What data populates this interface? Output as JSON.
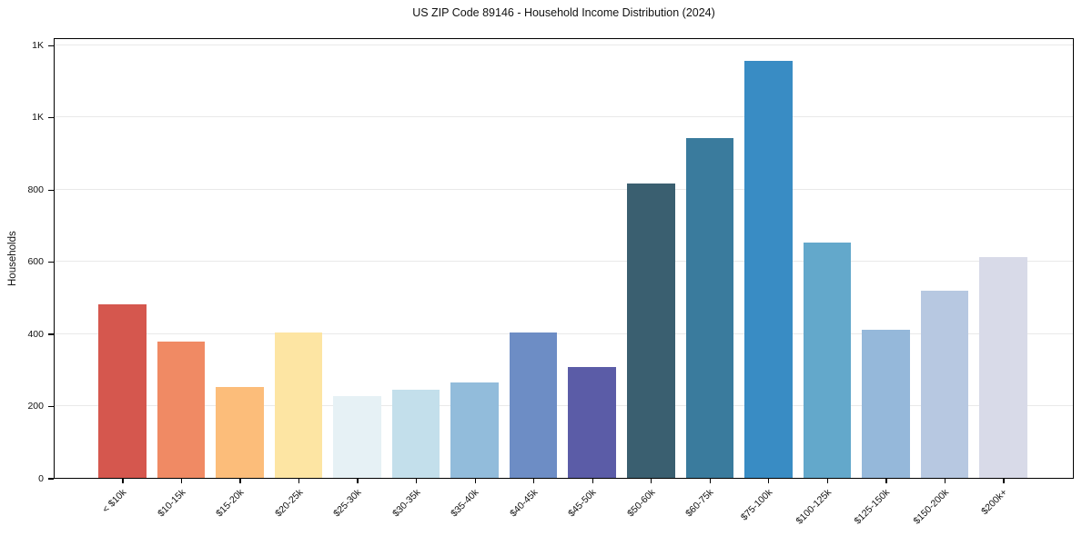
{
  "chart_data": {
    "type": "bar",
    "title": "US ZIP Code 89146 - Household Income Distribution (2024)",
    "xlabel": "",
    "ylabel": "Households",
    "categories": [
      "< $10k",
      "$10-15k",
      "$15-20k",
      "$20-25k",
      "$25-30k",
      "$30-35k",
      "$35-40k",
      "$40-45k",
      "$45-50k",
      "$50-60k",
      "$60-75k",
      "$75-100k",
      "$100-125k",
      "$125-150k",
      "$150-200k",
      "$200k+"
    ],
    "values": [
      480,
      377,
      253,
      404,
      227,
      243,
      265,
      404,
      306,
      815,
      941,
      1155,
      652,
      411,
      519,
      612
    ],
    "bar_colors": [
      "#d5574e",
      "#f08a64",
      "#fcbd7a",
      "#fde5a3",
      "#e6f1f5",
      "#c3dfeb",
      "#92bcdb",
      "#6d8dc5",
      "#5b5ca7",
      "#3a5f70",
      "#3a7b9d",
      "#398cc4",
      "#63a8cb",
      "#95b8da",
      "#b7c8e1",
      "#d8dae8"
    ],
    "ylim": [
      0,
      1221
    ],
    "yticks": [
      0,
      200,
      400,
      600,
      800,
      1000,
      1200
    ],
    "ytick_labels": [
      "0",
      "200",
      "400",
      "600",
      "800",
      "1K",
      "1K"
    ],
    "grid": "horizontal",
    "legend_position": "none"
  },
  "style": {
    "background": "#ffffff",
    "grid_color": "#e9e9e9",
    "spine_color": "#000000",
    "text_color": "#111111"
  }
}
